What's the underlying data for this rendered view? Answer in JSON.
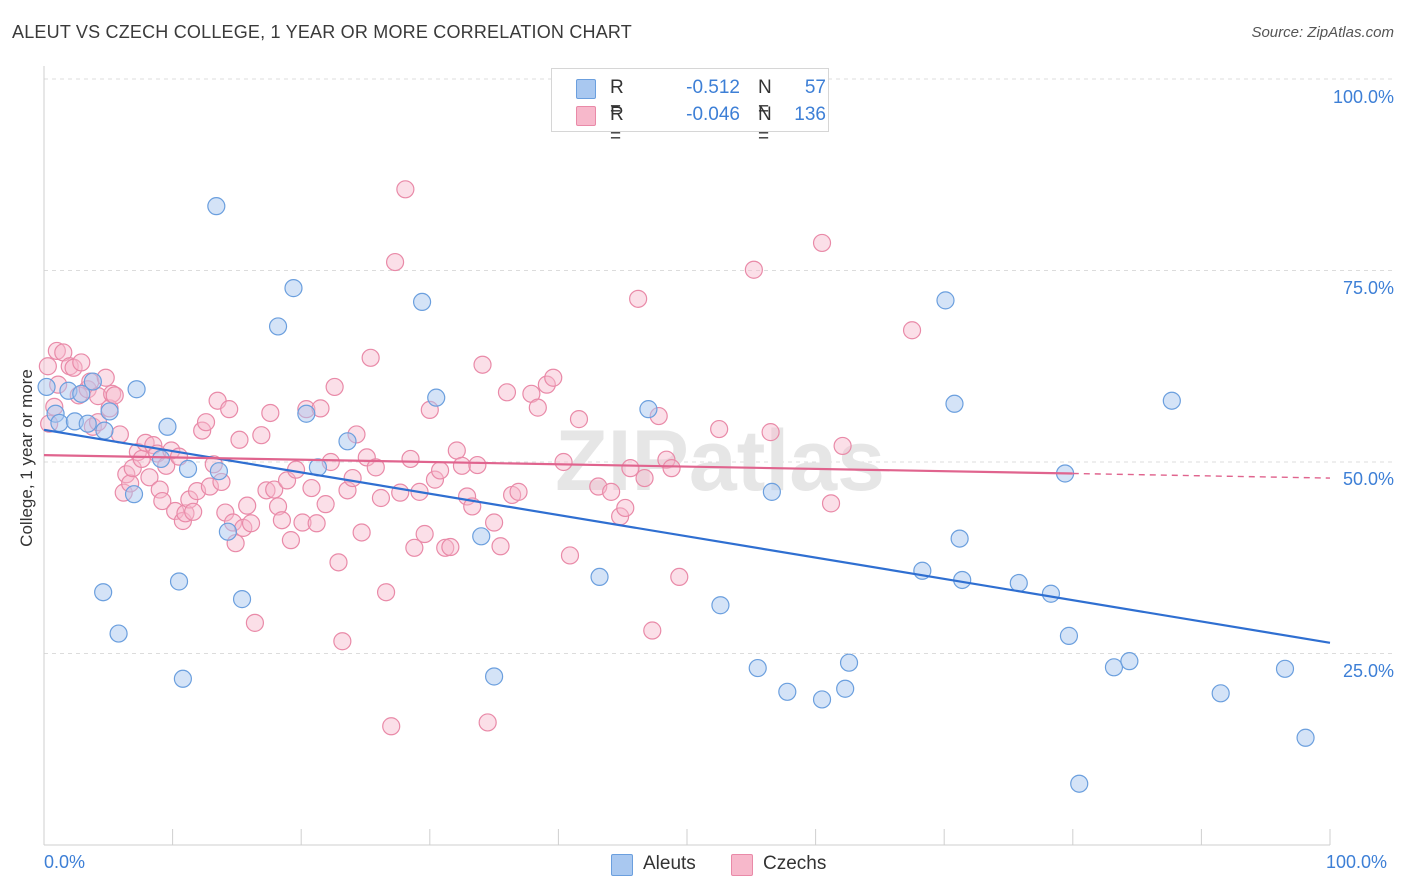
{
  "title": "ALEUT VS CZECH COLLEGE, 1 YEAR OR MORE CORRELATION CHART",
  "source": "Source: ZipAtlas.com",
  "watermark": "ZIPatlas",
  "legend": {
    "rows": [
      {
        "r_label": "R =",
        "r_value": "-0.512",
        "n_label": "N =",
        "n_value": "57",
        "color": "#a9c8f0"
      },
      {
        "r_label": "R =",
        "r_value": "-0.046",
        "n_label": "N =",
        "n_value": "136",
        "color": "#f7b8cb"
      }
    ]
  },
  "bottom_legend": [
    "Aleuts",
    "Czechs"
  ],
  "colors": {
    "aleut_fill": "#a9c8f0",
    "aleut_stroke": "#6b9fde",
    "aleut_line": "#2f6fd1",
    "czech_fill": "#f7b8cb",
    "czech_stroke": "#e98aa8",
    "czech_line": "#e0648e",
    "tick_label": "#3d7fd6"
  },
  "chart_data": {
    "type": "scatter",
    "title": "ALEUT VS CZECH COLLEGE, 1 YEAR OR MORE CORRELATION CHART",
    "xlabel": "",
    "ylabel": "College, 1 year or more",
    "xlim": [
      0,
      100
    ],
    "ylim": [
      0,
      100
    ],
    "x_tick_labels": [
      "0.0%",
      "100.0%"
    ],
    "y_ticks": [
      25,
      50,
      75,
      100
    ],
    "y_tick_labels": [
      "25.0%",
      "50.0%",
      "75.0%",
      "100.0%"
    ],
    "grid": true,
    "legend_position": "top-center",
    "series": [
      {
        "name": "Aleuts",
        "r": -0.512,
        "n": 57,
        "trend": {
          "x": [
            0,
            100
          ],
          "y": [
            54.2,
            26.4
          ]
        },
        "points": [
          [
            0.2,
            59.8
          ],
          [
            0.9,
            56.3
          ],
          [
            1.2,
            55.1
          ],
          [
            1.9,
            59.3
          ],
          [
            2.4,
            55.3
          ],
          [
            2.9,
            58.9
          ],
          [
            3.4,
            55.0
          ],
          [
            3.8,
            60.5
          ],
          [
            4.7,
            54.1
          ],
          [
            5.1,
            56.6
          ],
          [
            4.6,
            33.0
          ],
          [
            5.8,
            27.6
          ],
          [
            7.2,
            59.5
          ],
          [
            7.0,
            45.8
          ],
          [
            9.1,
            50.4
          ],
          [
            9.6,
            54.6
          ],
          [
            10.5,
            34.4
          ],
          [
            10.8,
            21.7
          ],
          [
            11.2,
            49.1
          ],
          [
            13.4,
            83.4
          ],
          [
            13.6,
            48.8
          ],
          [
            14.3,
            40.9
          ],
          [
            15.4,
            32.1
          ],
          [
            18.2,
            67.7
          ],
          [
            19.4,
            72.7
          ],
          [
            20.4,
            56.3
          ],
          [
            21.3,
            49.3
          ],
          [
            23.6,
            52.7
          ],
          [
            29.4,
            70.9
          ],
          [
            30.5,
            58.4
          ],
          [
            34.0,
            40.3
          ],
          [
            35.0,
            22.0
          ],
          [
            43.2,
            35.0
          ],
          [
            47.0,
            56.9
          ],
          [
            52.6,
            31.3
          ],
          [
            55.5,
            23.1
          ],
          [
            56.6,
            46.1
          ],
          [
            57.8,
            20.0
          ],
          [
            60.5,
            19.0
          ],
          [
            62.3,
            20.4
          ],
          [
            62.6,
            23.8
          ],
          [
            68.3,
            35.8
          ],
          [
            70.1,
            71.1
          ],
          [
            70.8,
            57.6
          ],
          [
            71.2,
            40.0
          ],
          [
            71.4,
            34.6
          ],
          [
            75.8,
            34.2
          ],
          [
            78.3,
            32.8
          ],
          [
            79.4,
            48.5
          ],
          [
            79.7,
            27.3
          ],
          [
            80.5,
            8.0
          ],
          [
            83.2,
            23.2
          ],
          [
            84.4,
            24.0
          ],
          [
            87.7,
            58.0
          ],
          [
            91.5,
            19.8
          ],
          [
            96.5,
            23.0
          ],
          [
            98.1,
            14.0
          ]
        ]
      },
      {
        "name": "Czechs",
        "r": -0.046,
        "n": 136,
        "trend": {
          "x": [
            0,
            80
          ],
          "y": [
            50.9,
            48.5
          ]
        },
        "trend_dashed": {
          "x": [
            80,
            100
          ],
          "y": [
            48.5,
            47.9
          ]
        },
        "points": [
          [
            0.3,
            62.5
          ],
          [
            0.4,
            55.0
          ],
          [
            0.8,
            57.2
          ],
          [
            1.0,
            64.5
          ],
          [
            1.1,
            60.1
          ],
          [
            1.5,
            64.3
          ],
          [
            2.0,
            62.5
          ],
          [
            2.3,
            62.3
          ],
          [
            2.7,
            58.7
          ],
          [
            2.9,
            63.0
          ],
          [
            3.4,
            59.5
          ],
          [
            3.6,
            60.5
          ],
          [
            3.8,
            54.6
          ],
          [
            4.2,
            55.2
          ],
          [
            4.2,
            58.6
          ],
          [
            4.8,
            61.0
          ],
          [
            5.1,
            57.0
          ],
          [
            5.3,
            58.9
          ],
          [
            5.5,
            58.7
          ],
          [
            5.9,
            53.6
          ],
          [
            6.2,
            46.0
          ],
          [
            6.4,
            48.4
          ],
          [
            6.7,
            47.2
          ],
          [
            6.9,
            49.2
          ],
          [
            7.3,
            51.3
          ],
          [
            7.6,
            50.4
          ],
          [
            7.9,
            52.5
          ],
          [
            8.2,
            48.0
          ],
          [
            8.5,
            52.2
          ],
          [
            8.8,
            51.1
          ],
          [
            9.0,
            46.4
          ],
          [
            9.2,
            44.9
          ],
          [
            9.5,
            49.5
          ],
          [
            9.9,
            51.5
          ],
          [
            10.2,
            43.6
          ],
          [
            10.5,
            50.7
          ],
          [
            10.8,
            42.3
          ],
          [
            11.0,
            43.3
          ],
          [
            11.3,
            45.1
          ],
          [
            11.6,
            43.5
          ],
          [
            11.9,
            46.2
          ],
          [
            12.3,
            54.1
          ],
          [
            12.6,
            55.2
          ],
          [
            12.9,
            46.8
          ],
          [
            13.2,
            49.7
          ],
          [
            13.5,
            58.0
          ],
          [
            13.8,
            47.4
          ],
          [
            14.1,
            43.4
          ],
          [
            14.4,
            56.9
          ],
          [
            14.7,
            42.1
          ],
          [
            14.9,
            39.4
          ],
          [
            15.2,
            52.9
          ],
          [
            15.5,
            41.4
          ],
          [
            15.8,
            44.3
          ],
          [
            16.1,
            42.0
          ],
          [
            16.4,
            29.0
          ],
          [
            16.9,
            53.5
          ],
          [
            17.3,
            46.3
          ],
          [
            17.6,
            56.4
          ],
          [
            17.9,
            46.4
          ],
          [
            18.2,
            44.2
          ],
          [
            18.5,
            42.4
          ],
          [
            18.9,
            47.6
          ],
          [
            19.2,
            39.8
          ],
          [
            19.6,
            49.0
          ],
          [
            20.1,
            42.1
          ],
          [
            20.4,
            56.9
          ],
          [
            20.8,
            46.6
          ],
          [
            21.2,
            42.0
          ],
          [
            21.5,
            57.0
          ],
          [
            21.9,
            44.5
          ],
          [
            22.3,
            50.0
          ],
          [
            22.6,
            59.8
          ],
          [
            22.9,
            36.9
          ],
          [
            23.2,
            26.6
          ],
          [
            23.6,
            46.3
          ],
          [
            24.0,
            47.9
          ],
          [
            24.3,
            53.6
          ],
          [
            24.7,
            40.8
          ],
          [
            25.1,
            50.6
          ],
          [
            25.4,
            63.6
          ],
          [
            25.8,
            49.3
          ],
          [
            26.2,
            45.3
          ],
          [
            26.6,
            33.0
          ],
          [
            27.0,
            15.5
          ],
          [
            27.3,
            76.1
          ],
          [
            27.7,
            46.0
          ],
          [
            28.1,
            85.6
          ],
          [
            28.5,
            50.4
          ],
          [
            28.8,
            38.8
          ],
          [
            29.2,
            46.1
          ],
          [
            29.6,
            40.6
          ],
          [
            30.0,
            56.8
          ],
          [
            30.4,
            47.7
          ],
          [
            30.8,
            48.9
          ],
          [
            31.2,
            38.8
          ],
          [
            31.6,
            38.9
          ],
          [
            32.1,
            51.5
          ],
          [
            32.5,
            49.5
          ],
          [
            32.9,
            45.5
          ],
          [
            33.3,
            44.2
          ],
          [
            33.7,
            49.6
          ],
          [
            34.1,
            62.7
          ],
          [
            34.5,
            16.0
          ],
          [
            35.0,
            42.1
          ],
          [
            35.5,
            39.0
          ],
          [
            36.0,
            59.1
          ],
          [
            36.4,
            45.7
          ],
          [
            36.9,
            46.1
          ],
          [
            37.9,
            58.9
          ],
          [
            38.4,
            57.1
          ],
          [
            39.1,
            60.1
          ],
          [
            39.6,
            61.0
          ],
          [
            40.4,
            50.0
          ],
          [
            40.9,
            37.8
          ],
          [
            41.6,
            55.6
          ],
          [
            43.1,
            46.8
          ],
          [
            44.1,
            46.1
          ],
          [
            44.8,
            42.9
          ],
          [
            45.2,
            44.0
          ],
          [
            45.6,
            49.2
          ],
          [
            46.2,
            71.3
          ],
          [
            46.7,
            47.9
          ],
          [
            47.3,
            28.0
          ],
          [
            47.8,
            56.0
          ],
          [
            48.4,
            50.3
          ],
          [
            48.8,
            49.2
          ],
          [
            49.4,
            35.0
          ],
          [
            52.5,
            54.3
          ],
          [
            55.2,
            75.1
          ],
          [
            56.5,
            53.9
          ],
          [
            60.5,
            78.6
          ],
          [
            61.2,
            44.6
          ],
          [
            62.1,
            52.1
          ],
          [
            67.5,
            67.2
          ]
        ]
      }
    ]
  }
}
